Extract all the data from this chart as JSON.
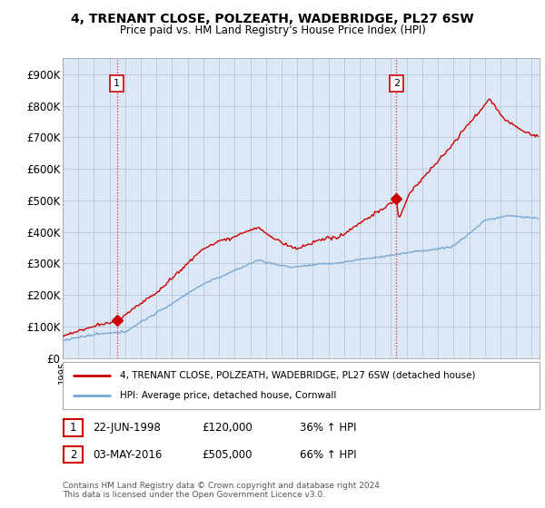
{
  "title": "4, TRENANT CLOSE, POLZEATH, WADEBRIDGE, PL27 6SW",
  "subtitle": "Price paid vs. HM Land Registry's House Price Index (HPI)",
  "ylabel_ticks": [
    "£0",
    "£100K",
    "£200K",
    "£300K",
    "£400K",
    "£500K",
    "£600K",
    "£700K",
    "£800K",
    "£900K"
  ],
  "ytick_values": [
    0,
    100000,
    200000,
    300000,
    400000,
    500000,
    600000,
    700000,
    800000,
    900000
  ],
  "ylim": [
    0,
    950000
  ],
  "xlim_start": 1995.0,
  "xlim_end": 2025.5,
  "red_line_color": "#cc0000",
  "blue_line_color": "#7aa8d2",
  "chart_bg_color": "#dce8f5",
  "marker1_x": 1998.47,
  "marker1_y": 120000,
  "marker2_x": 2016.34,
  "marker2_y": 505000,
  "annotation1_label": "1",
  "annotation2_label": "2",
  "legend_label_red": "4, TRENANT CLOSE, POLZEATH, WADEBRIDGE, PL27 6SW (detached house)",
  "legend_label_blue": "HPI: Average price, detached house, Cornwall",
  "table_rows": [
    {
      "num": "1",
      "date": "22-JUN-1998",
      "price": "£120,000",
      "change": "36% ↑ HPI"
    },
    {
      "num": "2",
      "date": "03-MAY-2016",
      "price": "£505,000",
      "change": "66% ↑ HPI"
    }
  ],
  "footer": "Contains HM Land Registry data © Crown copyright and database right 2024.\nThis data is licensed under the Open Government Licence v3.0.",
  "background_color": "#ffffff",
  "grid_color": "#bbccdd",
  "dotted_color": "#cc0000"
}
